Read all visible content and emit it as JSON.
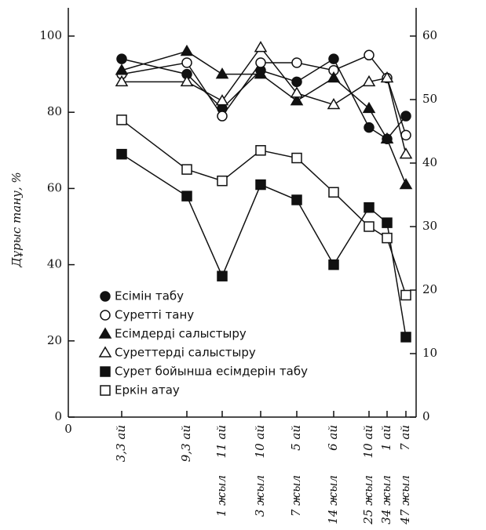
{
  "chart_data": {
    "type": "line",
    "y_label": "Дұрыс тану, %",
    "x_origin_label": "0",
    "categories": [
      [
        "3,3 ай"
      ],
      [
        "9,3 ай"
      ],
      [
        "1 жыл",
        "11 ай"
      ],
      [
        "3 жыл",
        "10 ай"
      ],
      [
        "7 жыл",
        "5 ай"
      ],
      [
        "14 жыл",
        "6 ай"
      ],
      [
        "25 жыл",
        "10 ай"
      ],
      [
        "34 жыл",
        "1 ай"
      ],
      [
        "47 жыл",
        "7 ай"
      ]
    ],
    "series": [
      {
        "name": "Есімін табу",
        "color": "#111",
        "marker": "filled-circle",
        "values": [
          94,
          90,
          81,
          91,
          88,
          94,
          76,
          73,
          79
        ]
      },
      {
        "name": "Суретті тану",
        "color": "#111",
        "marker": "open-circle",
        "values": [
          90,
          93,
          79,
          93,
          93,
          91,
          95,
          89,
          74
        ]
      },
      {
        "name": "Есімдерді салыстыру",
        "color": "#111",
        "marker": "filled-triangle",
        "values": [
          91,
          96,
          90,
          90,
          83,
          89,
          81,
          73,
          61
        ]
      },
      {
        "name": "Суреттерді салыстыру",
        "color": "#111",
        "marker": "open-triangle",
        "values": [
          88,
          88,
          83,
          97,
          85,
          82,
          88,
          89,
          69
        ]
      },
      {
        "name": "Сурет бойынша есімдерін табу",
        "color": "#111",
        "marker": "filled-square",
        "values": [
          69,
          58,
          37,
          61,
          57,
          40,
          55,
          51,
          21
        ]
      },
      {
        "name": "Еркін атау",
        "color": "#111",
        "marker": "open-square",
        "values": [
          78,
          65,
          62,
          70,
          68,
          59,
          50,
          47,
          32
        ]
      }
    ],
    "ylim": [
      0,
      100
    ],
    "yticks": [
      0,
      20,
      40,
      60,
      80,
      100
    ],
    "y2lim": [
      0,
      60
    ],
    "y2ticks": [
      0,
      10,
      20,
      30,
      40,
      50,
      60
    ]
  }
}
